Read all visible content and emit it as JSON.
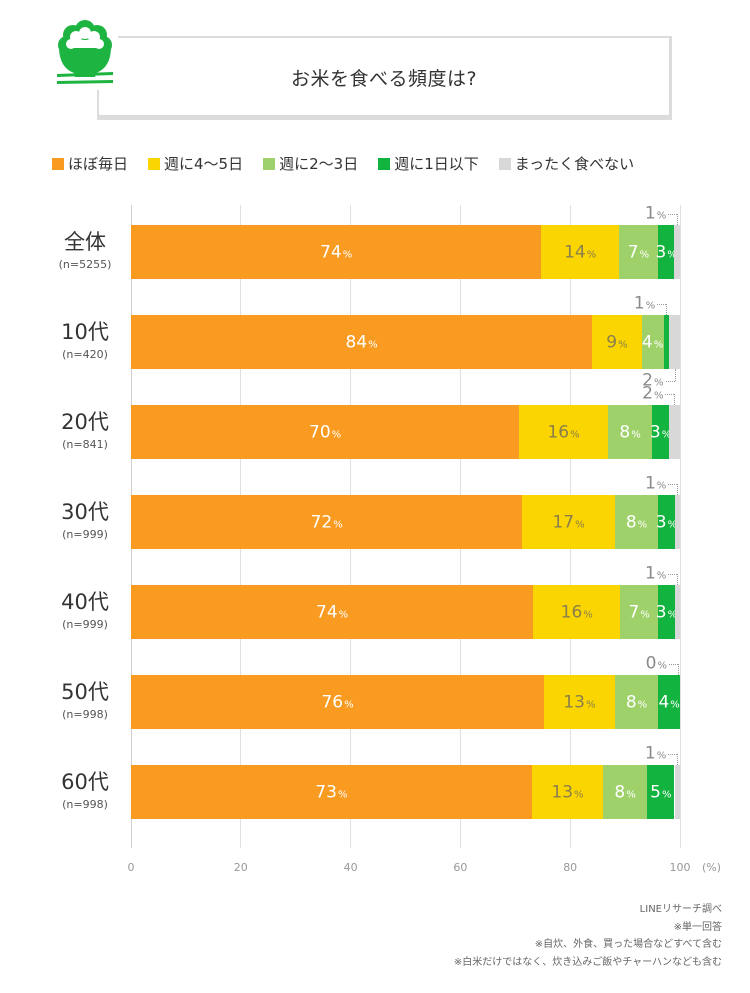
{
  "header": {
    "title": "お米を食べる頻度は?",
    "icon": "rice-bowl-icon",
    "icon_color": "#1DB441"
  },
  "legend": {
    "position": "top",
    "items": [
      {
        "label": "ほぼ毎日",
        "color": "#F99B21"
      },
      {
        "label": "週に4〜5日",
        "color": "#FBD500"
      },
      {
        "label": "週に2〜3日",
        "color": "#9FD16A"
      },
      {
        "label": "週に1日以下",
        "color": "#12B33E"
      },
      {
        "label": "まったく食べない",
        "color": "#D8D8D8"
      }
    ]
  },
  "chart_data": {
    "type": "bar",
    "orientation": "horizontal-stacked",
    "title": "お米を食べる頻度は?",
    "xlabel": "",
    "ylabel": "",
    "xunit": "(%)",
    "value_suffix": "%",
    "xlim": [
      0,
      100
    ],
    "xticks": [
      "0",
      "20",
      "40",
      "60",
      "80",
      "100"
    ],
    "grid": "vertical",
    "legend": "top",
    "categories": [
      {
        "label": "全体",
        "n": "(n=5255)",
        "callouts": [
          {
            "series_index": 4,
            "side": "above"
          }
        ]
      },
      {
        "label": "10代",
        "n": "(n=420)",
        "callouts": [
          {
            "series_index": 3,
            "side": "above"
          },
          {
            "series_index": 4,
            "side": "below"
          }
        ]
      },
      {
        "label": "20代",
        "n": "(n=841)",
        "callouts": [
          {
            "series_index": 4,
            "side": "above"
          }
        ]
      },
      {
        "label": "30代",
        "n": "(n=999)",
        "callouts": [
          {
            "series_index": 4,
            "side": "above"
          }
        ]
      },
      {
        "label": "40代",
        "n": "(n=999)",
        "callouts": [
          {
            "series_index": 4,
            "side": "above"
          }
        ]
      },
      {
        "label": "50代",
        "n": "(n=998)",
        "callouts": [
          {
            "series_index": 4,
            "side": "above"
          }
        ]
      },
      {
        "label": "60代",
        "n": "(n=998)",
        "callouts": [
          {
            "series_index": 4,
            "side": "above"
          }
        ]
      }
    ],
    "series": [
      {
        "name": "ほぼ毎日",
        "color": "#F99B21",
        "label_color": "#FFFFFF",
        "values": [
          74,
          84,
          70,
          72,
          74,
          76,
          73
        ]
      },
      {
        "name": "週に4〜5日",
        "color": "#FBD500",
        "label_color": "#8A7E4C",
        "values": [
          14,
          9,
          16,
          17,
          16,
          13,
          13
        ]
      },
      {
        "name": "週に2〜3日",
        "color": "#9FD16A",
        "label_color": "#FFFFFF",
        "values": [
          7,
          4,
          8,
          8,
          7,
          8,
          8
        ]
      },
      {
        "name": "週に1日以下",
        "color": "#12B33E",
        "label_color": "#FFFFFF",
        "values": [
          3,
          1,
          3,
          3,
          3,
          4,
          5
        ]
      },
      {
        "name": "まったく食べない",
        "color": "#D8D8D8",
        "label_color": "#8A8A8A",
        "values": [
          1,
          2,
          2,
          1,
          1,
          0,
          1
        ]
      }
    ]
  },
  "footnotes": [
    "LINEリサーチ調べ",
    "※単一回答",
    "※自炊、外食、買った場合などすべて含む",
    "※白米だけではなく、炊き込みご飯やチャーハンなども含む"
  ]
}
